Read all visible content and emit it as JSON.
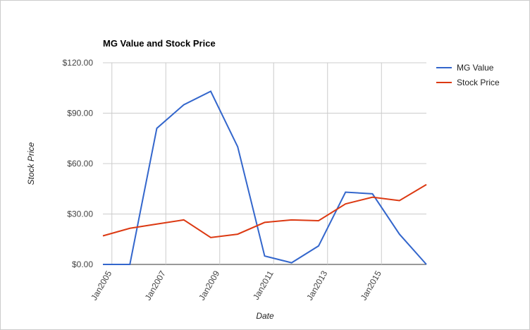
{
  "chart_data": {
    "type": "line",
    "title": "MG Value and Stock Price",
    "x_label": "Date",
    "y_label": "Stock Price",
    "x": [
      "2004-09",
      "2005-09",
      "2006-09",
      "2007-09",
      "2008-09",
      "2009-09",
      "2010-09",
      "2011-09",
      "2012-09",
      "2013-09",
      "2014-09",
      "2015-09",
      "2016-09"
    ],
    "series": [
      {
        "name": "MG Value",
        "color": "#3366cc",
        "values": [
          0,
          0,
          81,
          95,
          103,
          70,
          5,
          1,
          11,
          43,
          42,
          18,
          0
        ]
      },
      {
        "name": "Stock Price",
        "color": "#dc3912",
        "values": [
          17,
          21.5,
          24,
          26.5,
          16,
          18,
          25,
          26.5,
          26,
          36,
          40,
          38,
          47.5
        ]
      }
    ],
    "xlim": [
      "2004-09",
      "2016-09"
    ],
    "xticks": [
      {
        "value": "2005-01",
        "label": "Jan2005"
      },
      {
        "value": "2007-01",
        "label": "Jan2007"
      },
      {
        "value": "2009-01",
        "label": "Jan2009"
      },
      {
        "value": "2011-01",
        "label": "Jan2011"
      },
      {
        "value": "2013-01",
        "label": "Jan2013"
      },
      {
        "value": "2015-01",
        "label": "Jan2015"
      }
    ],
    "ylim": [
      0,
      120
    ],
    "yticks": [
      {
        "value": 0,
        "label": "$0.00"
      },
      {
        "value": 30,
        "label": "$30.00"
      },
      {
        "value": 60,
        "label": "$60.00"
      },
      {
        "value": 90,
        "label": "$90.00"
      },
      {
        "value": 120,
        "label": "$120.00"
      }
    ],
    "grid": true,
    "legend": "right"
  }
}
